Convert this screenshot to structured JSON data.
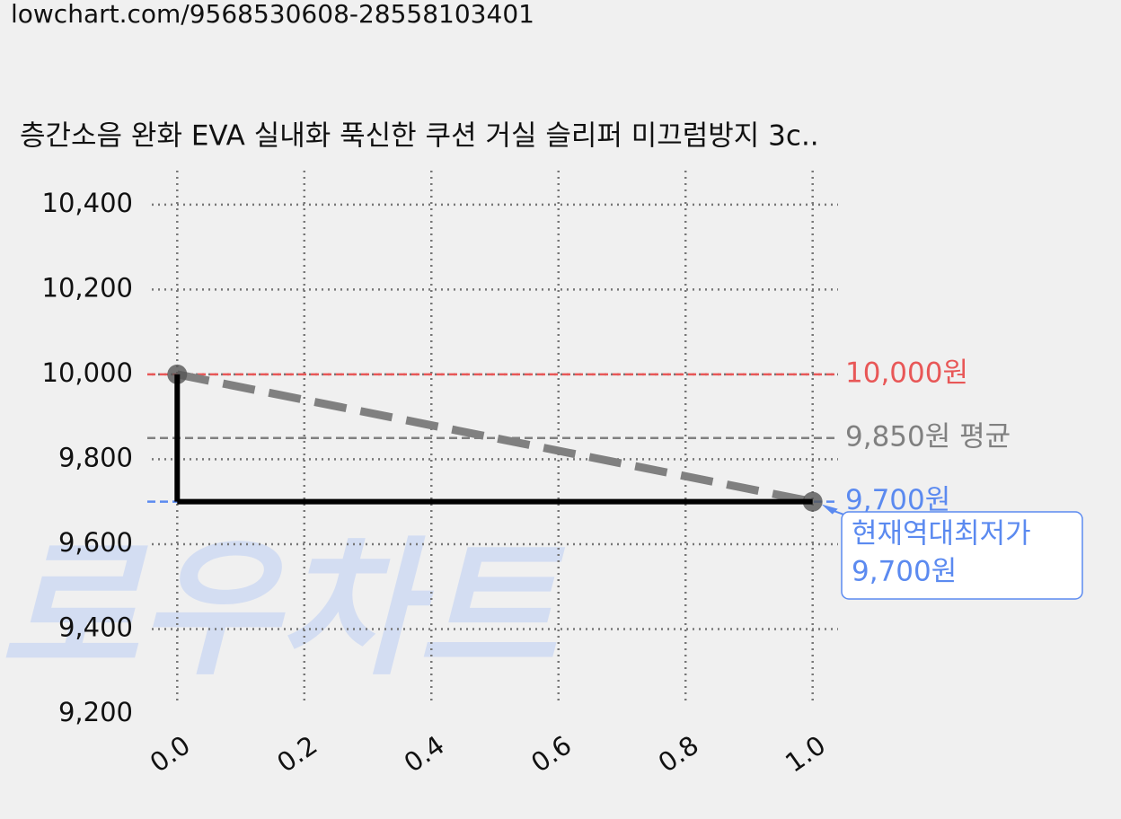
{
  "chart_data": {
    "type": "line",
    "url": "lowchart.com/9568530608-28558103401",
    "title": "층간소음 완화 EVA 실내화 푹신한 쿠션 거실 슬리퍼 미끄럼방지 3c..",
    "watermark": "로우차트",
    "x": [
      0,
      1
    ],
    "series": [
      {
        "color": "#808080",
        "style": "dashed",
        "values": [
          10000,
          9700
        ]
      },
      {
        "color": "#000000",
        "style": "step",
        "values": [
          10000,
          9700
        ]
      }
    ],
    "hlines": [
      {
        "value": 10000,
        "label": "10,000원",
        "color": "#e85757"
      },
      {
        "value": 9850,
        "label": "9,850원 평균",
        "color": "#808080"
      },
      {
        "value": 9700,
        "label": "9,700원",
        "color": "#5b8af0"
      }
    ],
    "annotation": {
      "x": 1,
      "y": 9700,
      "lines": [
        "현재역대최저가",
        "9,700원"
      ],
      "color": "#5b8af0"
    },
    "xlim": [
      -0.04,
      1.04
    ],
    "ylim": [
      9200,
      10480
    ],
    "xticks": [
      {
        "value": 0,
        "label": "0.0"
      },
      {
        "value": 0.2,
        "label": "0.2"
      },
      {
        "value": 0.4,
        "label": "0.4"
      },
      {
        "value": 0.6,
        "label": "0.6"
      },
      {
        "value": 0.8,
        "label": "0.8"
      },
      {
        "value": 1,
        "label": "1.0"
      }
    ],
    "yticks": [
      {
        "value": 9200,
        "label": "9,200"
      },
      {
        "value": 9400,
        "label": "9,400"
      },
      {
        "value": 9600,
        "label": "9,600"
      },
      {
        "value": 9800,
        "label": "9,800"
      },
      {
        "value": 10000,
        "label": "10,000"
      },
      {
        "value": 10200,
        "label": "10,200"
      },
      {
        "value": 10400,
        "label": "10,400"
      }
    ],
    "grid": true
  }
}
